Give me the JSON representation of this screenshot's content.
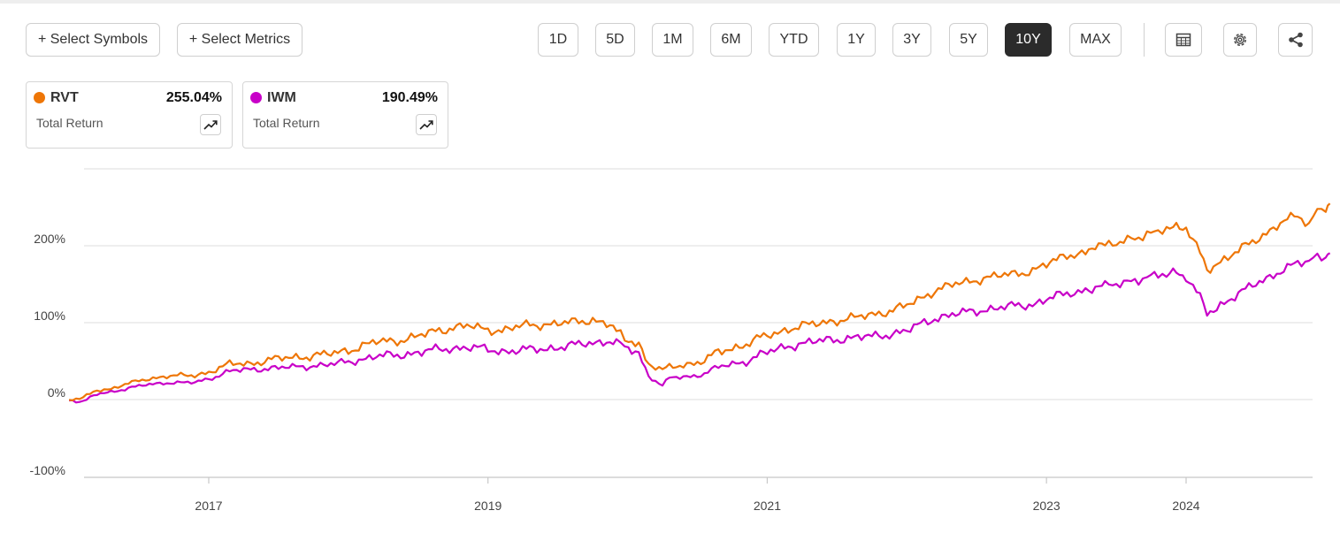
{
  "toolbar": {
    "select_symbols": "+ Select Symbols",
    "select_metrics": "+ Select Metrics",
    "periods": [
      "1D",
      "5D",
      "1M",
      "6M",
      "YTD",
      "1Y",
      "3Y",
      "5Y",
      "10Y",
      "MAX"
    ],
    "active_period": "10Y",
    "icons": [
      "table-icon",
      "gear-icon",
      "share-icon"
    ]
  },
  "legend": [
    {
      "symbol": "RVT",
      "value": "255.04%",
      "metric": "Total Return",
      "color": "#ee7607"
    },
    {
      "symbol": "IWM",
      "value": "190.49%",
      "metric": "Total Return",
      "color": "#c800c8"
    }
  ],
  "chart_data": {
    "type": "line",
    "y_ticks": [
      "200%",
      "100%",
      "0%",
      "-100%"
    ],
    "x_ticks": [
      "2017",
      "2019",
      "2021",
      "2023",
      "2024"
    ],
    "ylim": [
      -100,
      300
    ],
    "grid": true,
    "series": [
      {
        "name": "RVT",
        "color": "#ee7607",
        "points": [
          [
            2016.0,
            0
          ],
          [
            2016.1,
            2
          ],
          [
            2016.2,
            12
          ],
          [
            2016.3,
            14
          ],
          [
            2016.4,
            20
          ],
          [
            2016.55,
            26
          ],
          [
            2016.7,
            31
          ],
          [
            2016.9,
            31
          ],
          [
            2017.0,
            36
          ],
          [
            2017.15,
            46
          ],
          [
            2017.3,
            47
          ],
          [
            2017.45,
            52
          ],
          [
            2017.6,
            55
          ],
          [
            2017.75,
            57
          ],
          [
            2017.9,
            60
          ],
          [
            2018.05,
            67
          ],
          [
            2018.2,
            75
          ],
          [
            2018.35,
            77
          ],
          [
            2018.5,
            82
          ],
          [
            2018.6,
            88
          ],
          [
            2018.75,
            94
          ],
          [
            2018.85,
            96
          ],
          [
            2018.95,
            92
          ],
          [
            2019.1,
            90
          ],
          [
            2019.25,
            96
          ],
          [
            2019.4,
            98
          ],
          [
            2019.6,
            100
          ],
          [
            2019.75,
            104
          ],
          [
            2019.85,
            99
          ],
          [
            2019.92,
            90
          ],
          [
            2019.98,
            76
          ],
          [
            2020.08,
            72
          ],
          [
            2020.15,
            46
          ],
          [
            2020.25,
            38
          ],
          [
            2020.3,
            42
          ],
          [
            2020.45,
            47
          ],
          [
            2020.55,
            50
          ],
          [
            2020.65,
            62
          ],
          [
            2020.75,
            67
          ],
          [
            2020.85,
            72
          ],
          [
            2020.95,
            80
          ],
          [
            2021.05,
            86
          ],
          [
            2021.15,
            92
          ],
          [
            2021.3,
            97
          ],
          [
            2021.45,
            102
          ],
          [
            2021.6,
            105
          ],
          [
            2021.75,
            111
          ],
          [
            2021.9,
            116
          ],
          [
            2022.0,
            122
          ],
          [
            2022.1,
            132
          ],
          [
            2022.2,
            142
          ],
          [
            2022.35,
            150
          ],
          [
            2022.55,
            158
          ],
          [
            2022.75,
            163
          ],
          [
            2022.9,
            168
          ],
          [
            2023.0,
            175
          ],
          [
            2023.12,
            188
          ],
          [
            2023.2,
            190
          ],
          [
            2023.28,
            192
          ],
          [
            2023.35,
            199
          ],
          [
            2023.42,
            202
          ],
          [
            2023.5,
            205
          ],
          [
            2023.58,
            210
          ],
          [
            2023.66,
            212
          ],
          [
            2023.72,
            215
          ],
          [
            2023.8,
            218
          ],
          [
            2023.86,
            221
          ],
          [
            2023.93,
            226
          ],
          [
            2024.0,
            222
          ],
          [
            2024.1,
            190
          ],
          [
            2024.15,
            170
          ],
          [
            2024.22,
            176
          ],
          [
            2024.3,
            185
          ],
          [
            2024.4,
            196
          ],
          [
            2024.5,
            208
          ],
          [
            2024.6,
            220
          ],
          [
            2024.7,
            232
          ],
          [
            2024.8,
            238
          ],
          [
            2024.88,
            226
          ],
          [
            2024.94,
            244
          ],
          [
            2025.0,
            249
          ],
          [
            2025.03,
            255
          ]
        ]
      },
      {
        "name": "IWM",
        "color": "#c800c8",
        "points": [
          [
            2016.0,
            0
          ],
          [
            2016.1,
            -3
          ],
          [
            2016.2,
            7
          ],
          [
            2016.3,
            10
          ],
          [
            2016.4,
            14
          ],
          [
            2016.55,
            19
          ],
          [
            2016.7,
            22
          ],
          [
            2016.9,
            22
          ],
          [
            2017.0,
            27
          ],
          [
            2017.15,
            37
          ],
          [
            2017.3,
            39
          ],
          [
            2017.45,
            41
          ],
          [
            2017.6,
            42
          ],
          [
            2017.75,
            44
          ],
          [
            2017.9,
            46
          ],
          [
            2018.05,
            51
          ],
          [
            2018.2,
            56
          ],
          [
            2018.35,
            58
          ],
          [
            2018.5,
            61
          ],
          [
            2018.6,
            64
          ],
          [
            2018.75,
            67
          ],
          [
            2018.85,
            68
          ],
          [
            2018.95,
            66
          ],
          [
            2019.1,
            63
          ],
          [
            2019.25,
            64
          ],
          [
            2019.4,
            66
          ],
          [
            2019.6,
            70
          ],
          [
            2019.75,
            74
          ],
          [
            2019.85,
            76
          ],
          [
            2019.92,
            73
          ],
          [
            2019.98,
            68
          ],
          [
            2020.08,
            58
          ],
          [
            2020.15,
            31
          ],
          [
            2020.25,
            18
          ],
          [
            2020.3,
            28
          ],
          [
            2020.45,
            30
          ],
          [
            2020.55,
            34
          ],
          [
            2020.65,
            42
          ],
          [
            2020.75,
            46
          ],
          [
            2020.85,
            50
          ],
          [
            2020.95,
            58
          ],
          [
            2021.05,
            64
          ],
          [
            2021.15,
            70
          ],
          [
            2021.3,
            74
          ],
          [
            2021.45,
            78
          ],
          [
            2021.6,
            80
          ],
          [
            2021.75,
            82
          ],
          [
            2021.9,
            86
          ],
          [
            2022.0,
            89
          ],
          [
            2022.1,
            98
          ],
          [
            2022.2,
            106
          ],
          [
            2022.35,
            111
          ],
          [
            2022.55,
            117
          ],
          [
            2022.75,
            121
          ],
          [
            2022.9,
            124
          ],
          [
            2023.0,
            130
          ],
          [
            2023.12,
            138
          ],
          [
            2023.2,
            140
          ],
          [
            2023.28,
            142
          ],
          [
            2023.35,
            146
          ],
          [
            2023.42,
            148
          ],
          [
            2023.5,
            150
          ],
          [
            2023.58,
            153
          ],
          [
            2023.66,
            155
          ],
          [
            2023.72,
            158
          ],
          [
            2023.8,
            160
          ],
          [
            2023.86,
            162
          ],
          [
            2023.93,
            165
          ],
          [
            2024.0,
            160
          ],
          [
            2024.1,
            132
          ],
          [
            2024.15,
            112
          ],
          [
            2024.22,
            120
          ],
          [
            2024.3,
            130
          ],
          [
            2024.4,
            140
          ],
          [
            2024.5,
            150
          ],
          [
            2024.6,
            160
          ],
          [
            2024.7,
            170
          ],
          [
            2024.8,
            176
          ],
          [
            2024.88,
            178
          ],
          [
            2024.94,
            185
          ],
          [
            2025.0,
            186
          ],
          [
            2025.03,
            190.5
          ]
        ]
      }
    ]
  }
}
